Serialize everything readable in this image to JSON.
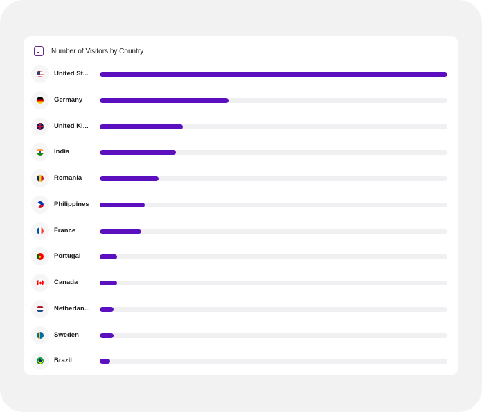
{
  "header": {
    "title": "Number of Visitors by Country"
  },
  "chart_data": {
    "type": "bar",
    "orientation": "horizontal",
    "title": "Number of Visitors by Country",
    "categories": [
      "United St...",
      "Germany",
      "United Ki...",
      "India",
      "Romania",
      "Philippines",
      "France",
      "Portugal",
      "Canada",
      "Netherlan...",
      "Sweden",
      "Brazil"
    ],
    "values": [
      100,
      37,
      24,
      22,
      17,
      13,
      12,
      5,
      5,
      4,
      4,
      3
    ],
    "xlim": [
      0,
      100
    ],
    "bar_color": "#5b0fbf",
    "track_color": "#f0f0f2",
    "grid": false,
    "legend": "none"
  },
  "rows": [
    {
      "label": "United St...",
      "flag": "us-flag-icon"
    },
    {
      "label": "Germany",
      "flag": "de-flag-icon"
    },
    {
      "label": "United Ki...",
      "flag": "gb-flag-icon"
    },
    {
      "label": "India",
      "flag": "in-flag-icon"
    },
    {
      "label": "Romania",
      "flag": "ro-flag-icon"
    },
    {
      "label": "Philippines",
      "flag": "ph-flag-icon"
    },
    {
      "label": "France",
      "flag": "fr-flag-icon"
    },
    {
      "label": "Portugal",
      "flag": "pt-flag-icon"
    },
    {
      "label": "Canada",
      "flag": "ca-flag-icon"
    },
    {
      "label": "Netherlan...",
      "flag": "nl-flag-icon"
    },
    {
      "label": "Sweden",
      "flag": "se-flag-icon"
    },
    {
      "label": "Brazil",
      "flag": "br-flag-icon"
    }
  ]
}
